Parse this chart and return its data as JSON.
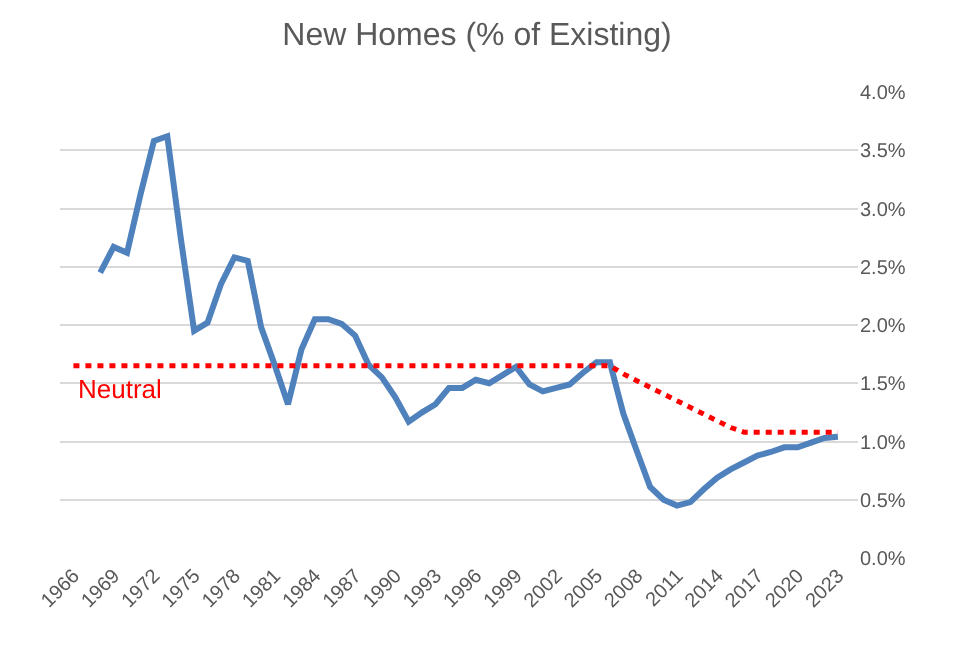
{
  "chart_data": {
    "type": "line",
    "title": "New Homes (% of Existing)",
    "grid": "y",
    "legend": false,
    "line_style": "solid",
    "marker": "none",
    "xlim": [
      1965,
      2024.5
    ],
    "xticks": [
      1966,
      1969,
      1972,
      1975,
      1978,
      1981,
      1984,
      1987,
      1990,
      1993,
      1996,
      1999,
      2002,
      2005,
      2008,
      2011,
      2014,
      2017,
      2020,
      2023
    ],
    "ylim": [
      0,
      4
    ],
    "yticks": [
      {
        "value": 0,
        "label": "0.0%"
      },
      {
        "value": 0.5,
        "label": "0.5%"
      },
      {
        "value": 1,
        "label": "1.0%"
      },
      {
        "value": 1.5,
        "label": "1.5%"
      },
      {
        "value": 2,
        "label": "2.0%"
      },
      {
        "value": 2.5,
        "label": "2.5%"
      },
      {
        "value": 3,
        "label": "3.0%"
      },
      {
        "value": 3.5,
        "label": "3.5%"
      },
      {
        "value": 4,
        "label": "4.0%"
      }
    ],
    "x": [
      1968,
      1969,
      1970,
      1971,
      1972,
      1973,
      1974,
      1975,
      1976,
      1977,
      1978,
      1979,
      1980,
      1981,
      1982,
      1983,
      1984,
      1985,
      1986,
      1987,
      1988,
      1989,
      1990,
      1991,
      1992,
      1993,
      1994,
      1995,
      1996,
      1997,
      1998,
      1999,
      2000,
      2001,
      2002,
      2003,
      2004,
      2005,
      2006,
      2007,
      2008,
      2009,
      2010,
      2011,
      2012,
      2013,
      2014,
      2015,
      2016,
      2017,
      2018,
      2019,
      2020,
      2021,
      2022,
      2023
    ],
    "series": [
      {
        "color": "#4f81bd",
        "values": [
          2.45,
          2.67,
          2.62,
          3.12,
          3.58,
          3.62,
          2.75,
          1.95,
          2.02,
          2.35,
          2.58,
          2.55,
          1.98,
          1.66,
          1.32,
          1.79,
          2.05,
          2.05,
          2.01,
          1.91,
          1.66,
          1.55,
          1.38,
          1.17,
          1.25,
          1.32,
          1.46,
          1.46,
          1.53,
          1.5,
          1.57,
          1.64,
          1.49,
          1.43,
          1.46,
          1.49,
          1.59,
          1.68,
          1.68,
          1.24,
          0.92,
          0.61,
          0.5,
          0.45,
          0.48,
          0.59,
          0.69,
          0.76,
          0.82,
          0.88,
          0.91,
          0.95,
          0.95,
          0.99,
          1.03,
          1.04
        ]
      },
      {
        "name": "Neutral",
        "color": "#ff0000",
        "line_style": "dotted",
        "x": [
          1966,
          2006,
          2007,
          2015,
          2016,
          2023
        ],
        "values": [
          1.65,
          1.65,
          1.58,
          1.12,
          1.08,
          1.08
        ]
      }
    ]
  }
}
